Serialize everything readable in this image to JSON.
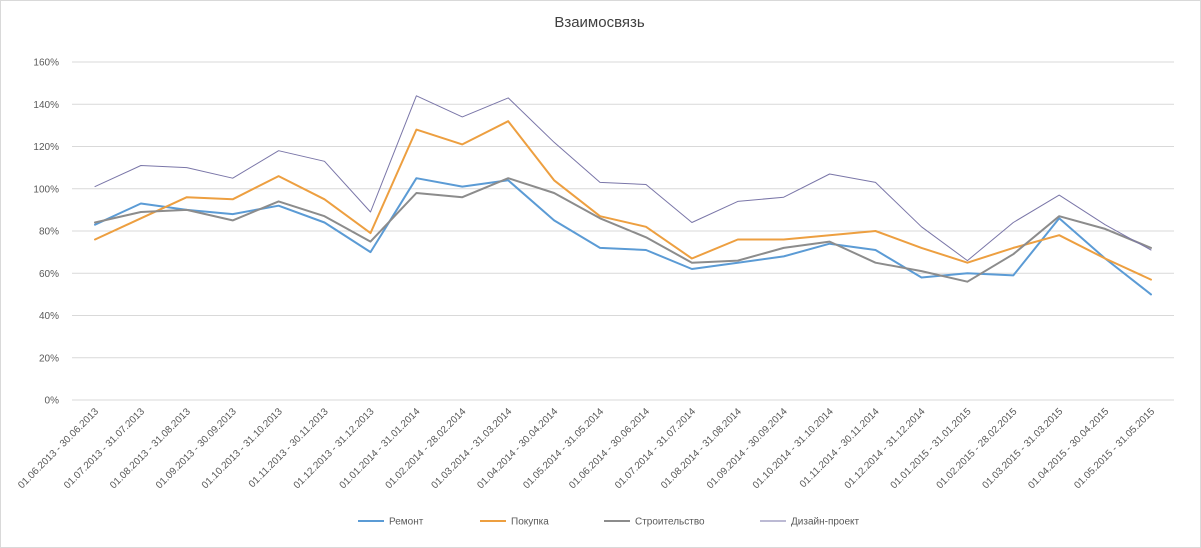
{
  "chart_data": {
    "type": "line",
    "title": "Взаимосвязь",
    "xlabel": "",
    "ylabel": "",
    "ylim": [
      0,
      160
    ],
    "y_ticks": [
      "0%",
      "20%",
      "40%",
      "60%",
      "80%",
      "100%",
      "120%",
      "140%",
      "160%"
    ],
    "grid": "horizontal",
    "legend_position": "bottom",
    "categories": [
      "01.06.2013 - 30.06.2013",
      "01.07.2013 - 31.07.2013",
      "01.08.2013 - 31.08.2013",
      "01.09.2013 - 30.09.2013",
      "01.10.2013 - 31.10.2013",
      "01.11.2013 - 30.11.2013",
      "01.12.2013 - 31.12.2013",
      "01.01.2014 - 31.01.2014",
      "01.02.2014 - 28.02.2014",
      "01.03.2014 - 31.03.2014",
      "01.04.2014 - 30.04.2014",
      "01.05.2014 - 31.05.2014",
      "01.06.2014 - 30.06.2014",
      "01.07.2014 - 31.07.2014",
      "01.08.2014 - 31.08.2014",
      "01.09.2014 - 30.09.2014",
      "01.10.2014 - 31.10.2014",
      "01.11.2014 - 30.11.2014",
      "01.12.2014 - 31.12.2014",
      "01.01.2015 - 31.01.2015",
      "01.02.2015 - 28.02.2015",
      "01.03.2015 - 31.03.2015",
      "01.04.2015 - 30.04.2015",
      "01.05.2015 - 31.05.2015"
    ],
    "series": [
      {
        "name": "Ремонт",
        "color": "#5b9bd5",
        "values": [
          83,
          93,
          90,
          88,
          92,
          84,
          70,
          105,
          101,
          104,
          85,
          72,
          71,
          62,
          65,
          68,
          74,
          71,
          58,
          60,
          59,
          86,
          67,
          50
        ]
      },
      {
        "name": "Покупка",
        "color": "#ed9f40",
        "values": [
          76,
          86,
          96,
          95,
          106,
          95,
          79,
          128,
          121,
          132,
          104,
          87,
          82,
          67,
          76,
          76,
          78,
          80,
          72,
          65,
          72,
          78,
          67,
          57
        ]
      },
      {
        "name": "Строительство",
        "color": "#8c8c8c",
        "values": [
          84,
          89,
          90,
          85,
          94,
          87,
          75,
          98,
          96,
          105,
          98,
          86,
          77,
          65,
          66,
          72,
          75,
          65,
          61,
          56,
          69,
          87,
          81,
          72
        ]
      },
      {
        "name": "Дизайн-проект",
        "color": "#7a76a8",
        "values": [
          101,
          111,
          110,
          105,
          118,
          113,
          89,
          144,
          134,
          143,
          122,
          103,
          102,
          84,
          94,
          96,
          107,
          103,
          82,
          66,
          84,
          97,
          83,
          71
        ]
      }
    ]
  }
}
